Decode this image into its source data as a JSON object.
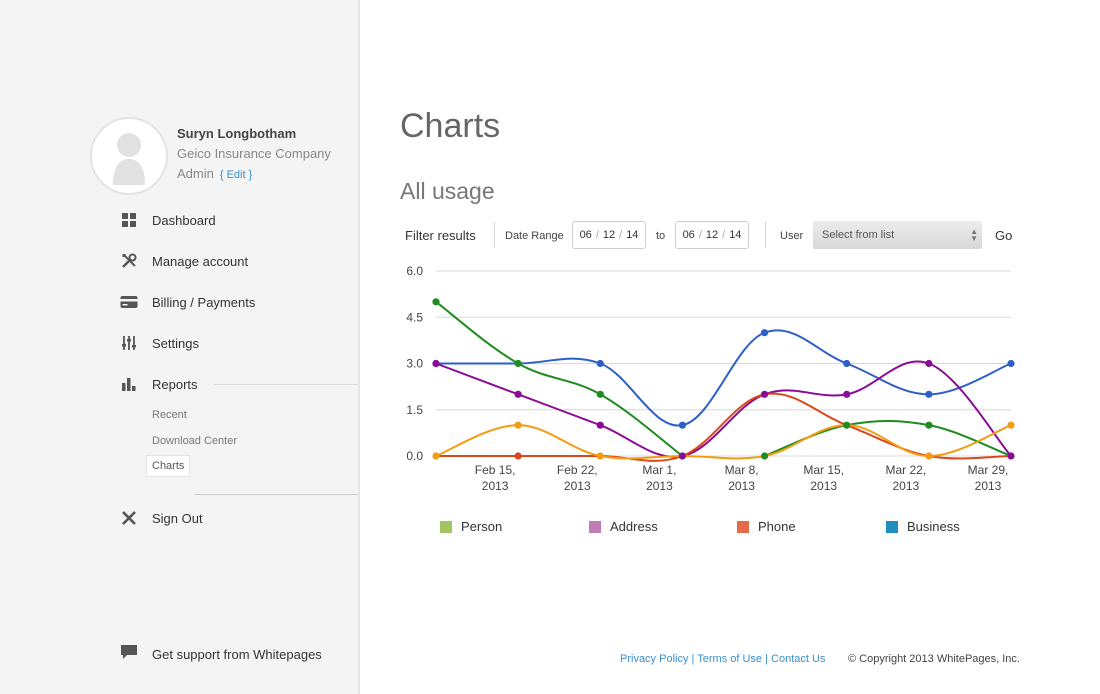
{
  "profile": {
    "name": "Suryn Longbotham",
    "company": "Geico Insurance Company",
    "role": "Admin",
    "edit_label": "{ Edit }"
  },
  "nav": {
    "dashboard": "Dashboard",
    "manage_account": "Manage account",
    "billing": "Billing / Payments",
    "settings": "Settings",
    "reports": "Reports",
    "sub": {
      "recent": "Recent",
      "download_center": "Download Center",
      "charts": "Charts"
    },
    "sign_out": "Sign Out",
    "support": "Get support from Whitepages"
  },
  "main": {
    "title": "Charts",
    "section_title": "All usage"
  },
  "filter": {
    "label": "Filter results",
    "date_range_label": "Date Range",
    "from_date": {
      "mm": "06",
      "dd": "12",
      "yy": "14"
    },
    "to_label": "to",
    "to_date": {
      "mm": "06",
      "dd": "12",
      "yy": "14"
    },
    "user_label": "User",
    "user_select_value": "Select from list",
    "go_label": "Go"
  },
  "chart_data": {
    "type": "line",
    "x_labels": [
      "Feb 15,\n2013",
      "Feb 22,\n2013",
      "Mar 1,\n2013",
      "Mar 8,\n2013",
      "Mar 15,\n2013",
      "Mar 22,\n2013",
      "Mar 29,\n2013"
    ],
    "y_ticks": [
      "0.0",
      "1.5",
      "3.0",
      "4.5",
      "6.0"
    ],
    "ylim": [
      0,
      6
    ],
    "grid": true,
    "series": [
      {
        "color": "#2e5fc9",
        "points": [
          [
            0,
            3
          ],
          [
            1,
            3
          ],
          [
            2,
            3
          ],
          [
            3,
            1
          ],
          [
            4,
            4
          ],
          [
            5,
            3
          ],
          [
            6,
            2
          ],
          [
            7,
            3
          ]
        ]
      },
      {
        "color": "#1e8c1e",
        "points": [
          [
            0,
            5
          ],
          [
            1,
            3
          ],
          [
            2,
            2
          ],
          [
            3,
            0
          ]
        ]
      },
      {
        "color": "#1e8c1e",
        "points": [
          [
            4,
            0
          ],
          [
            5,
            1
          ],
          [
            6,
            1
          ],
          [
            7,
            0
          ]
        ]
      },
      {
        "color": "#8a0b94",
        "points": [
          [
            0,
            3
          ],
          [
            1,
            2
          ],
          [
            2,
            1
          ],
          [
            3,
            0
          ],
          [
            4,
            2
          ],
          [
            5,
            2
          ],
          [
            6,
            3
          ],
          [
            7,
            0
          ]
        ]
      },
      {
        "color": "#d9481c",
        "points": [
          [
            0,
            0
          ],
          [
            1,
            0
          ],
          [
            2,
            0
          ],
          [
            3,
            0
          ],
          [
            4,
            2
          ],
          [
            5,
            1
          ],
          [
            6,
            0
          ],
          [
            7,
            0
          ]
        ]
      },
      {
        "color": "#f39c12",
        "points": [
          [
            0,
            0
          ],
          [
            1,
            1
          ],
          [
            2,
            0
          ],
          [
            3,
            0
          ],
          [
            4,
            0
          ],
          [
            5,
            1
          ],
          [
            6,
            0
          ],
          [
            7,
            1
          ]
        ]
      }
    ],
    "markers": [
      {
        "color": "#2e5fc9",
        "points": [
          [
            0,
            3
          ],
          [
            2,
            3
          ],
          [
            3,
            1
          ],
          [
            4,
            4
          ],
          [
            5,
            3
          ],
          [
            6,
            2
          ],
          [
            7,
            3
          ]
        ]
      },
      {
        "color": "#1e8c1e",
        "points": [
          [
            0,
            5
          ],
          [
            1,
            3
          ],
          [
            2,
            2
          ],
          [
            4,
            0
          ],
          [
            5,
            1
          ],
          [
            6,
            1
          ]
        ]
      },
      {
        "color": "#8a0b94",
        "points": [
          [
            0,
            3
          ],
          [
            1,
            2
          ],
          [
            2,
            1
          ],
          [
            3,
            0
          ],
          [
            4,
            2
          ],
          [
            5,
            2
          ],
          [
            6,
            3
          ],
          [
            7,
            0
          ]
        ]
      },
      {
        "color": "#d9481c",
        "points": [
          [
            1,
            0
          ]
        ]
      },
      {
        "color": "#f39c12",
        "points": [
          [
            0,
            0
          ],
          [
            1,
            1
          ],
          [
            2,
            0
          ],
          [
            6,
            0
          ],
          [
            7,
            1
          ]
        ]
      }
    ]
  },
  "legend": [
    {
      "label": "Person",
      "color": "#a3c463"
    },
    {
      "label": "Address",
      "color": "#c27bb3"
    },
    {
      "label": "Phone",
      "color": "#e56a4d"
    },
    {
      "label": "Business",
      "color": "#1f8ec1"
    }
  ],
  "footer": {
    "privacy": "Privacy Policy",
    "terms": "Terms of Use",
    "contact": "Contact Us",
    "link_sep": " | ",
    "copyright": "© Copyright 2013 WhitePages, Inc."
  }
}
